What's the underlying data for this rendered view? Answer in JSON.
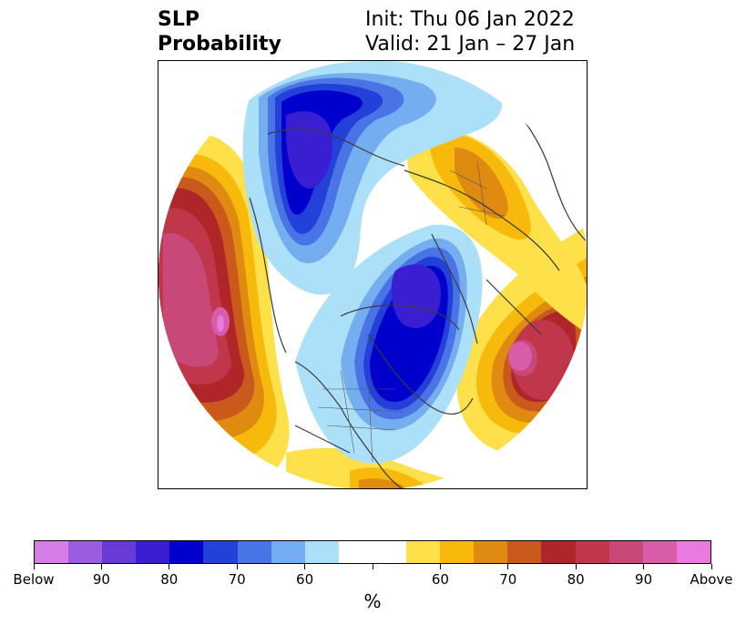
{
  "title": {
    "left_line1": "SLP",
    "left_line2": "Probability",
    "right_line1": "Init: Thu 06 Jan 2022",
    "right_line2": "Valid: 21 Jan – 27 Jan"
  },
  "colorbar": {
    "label": "%",
    "colors": [
      "#d77de8",
      "#9b5ce0",
      "#6a3ad8",
      "#3a1ed2",
      "#0000cc",
      "#2341d9",
      "#4a74e6",
      "#74adf0",
      "#ace0f8",
      "#ffffff",
      "#ffffff",
      "#fde04a",
      "#f6b90c",
      "#df8a10",
      "#c95a1c",
      "#b02628",
      "#c0364a",
      "#c84878",
      "#d85ca8",
      "#e97ade"
    ],
    "tick_labels": [
      "Below",
      "90",
      "80",
      "70",
      "60",
      "",
      "60",
      "70",
      "80",
      "90",
      "Above"
    ]
  },
  "map": {
    "projection": "north polar stereographic",
    "regions": [
      {
        "name": "north-pacific-high",
        "category": "Above",
        "peak": "90"
      },
      {
        "name": "north-atlantic-high",
        "category": "Above",
        "peak": "90"
      },
      {
        "name": "europe-positive",
        "category": "Above",
        "peak": "70"
      },
      {
        "name": "north-america-low",
        "category": "Below",
        "peak": "80"
      },
      {
        "name": "siberia-low",
        "category": "Below",
        "peak": "80"
      }
    ]
  }
}
